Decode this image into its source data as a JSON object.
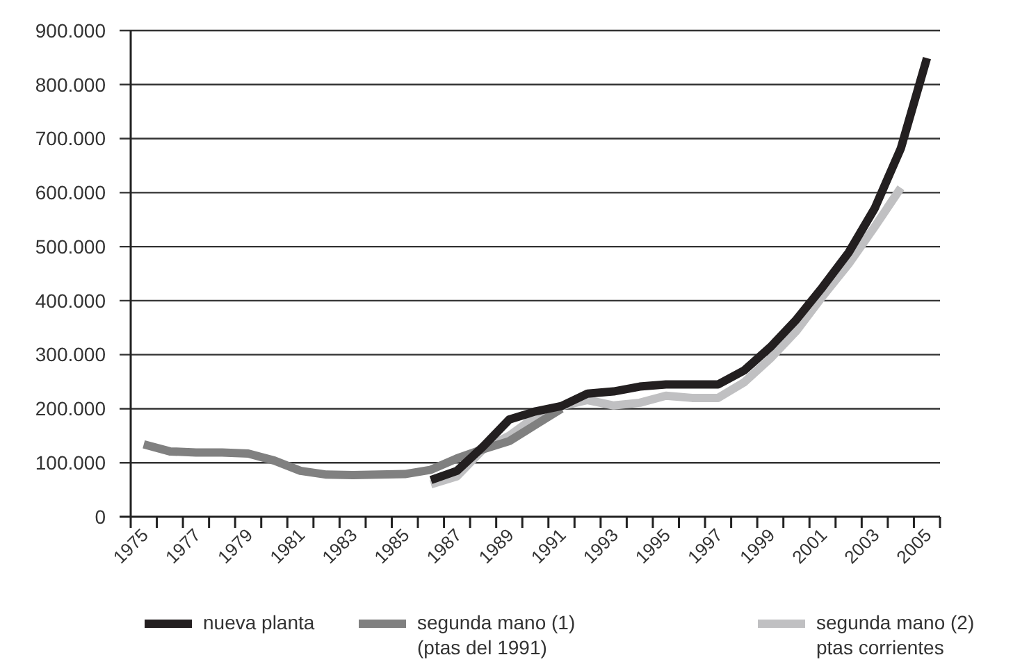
{
  "chart_data": {
    "type": "line",
    "categories": [
      "1975",
      null,
      "1977",
      null,
      "1979",
      null,
      "1981",
      null,
      "1983",
      null,
      "1985",
      null,
      "1987",
      null,
      "1989",
      null,
      "1991",
      null,
      "1993",
      null,
      "1995",
      null,
      "1997",
      null,
      "1999",
      null,
      "2001",
      null,
      "2003",
      null,
      "2005"
    ],
    "series": [
      {
        "name": "nueva planta",
        "color": "#231f20",
        "values": [
          null,
          null,
          null,
          null,
          null,
          null,
          null,
          null,
          null,
          null,
          null,
          68000,
          85000,
          130000,
          180000,
          195000,
          205000,
          228000,
          232000,
          241000,
          245000,
          245000,
          245000,
          271000,
          314000,
          365000,
          425000,
          489000,
          571000,
          682000,
          849000
        ]
      },
      {
        "name": "segunda mano (1) (ptas del 1991)",
        "color": "#808080",
        "values": [
          134000,
          121000,
          119000,
          119000,
          117000,
          104000,
          85000,
          78000,
          77000,
          78000,
          79000,
          87000,
          108000,
          125000,
          140000,
          170000,
          200000,
          null,
          null,
          null,
          null,
          null,
          null,
          null,
          null,
          null,
          null,
          null,
          null,
          null,
          null
        ]
      },
      {
        "name": "segunda mano (2) ptas corrientes",
        "color": "#c0c0c2",
        "values": [
          null,
          null,
          null,
          null,
          null,
          null,
          null,
          null,
          null,
          null,
          null,
          60000,
          75000,
          125000,
          150000,
          185000,
          205000,
          216000,
          206000,
          211000,
          224000,
          220000,
          220000,
          249000,
          293000,
          344000,
          408000,
          468000,
          537000,
          609000,
          null
        ]
      }
    ],
    "ylim": [
      0,
      900000
    ],
    "yticks": [
      {
        "value": 0,
        "label": "0"
      },
      {
        "value": 100000,
        "label": "100.000"
      },
      {
        "value": 200000,
        "label": "200.000"
      },
      {
        "value": 300000,
        "label": "300.000"
      },
      {
        "value": 400000,
        "label": "400.000"
      },
      {
        "value": 500000,
        "label": "500.000"
      },
      {
        "value": 600000,
        "label": "600.000"
      },
      {
        "value": 700000,
        "label": "700.000"
      },
      {
        "value": 800000,
        "label": "800.000"
      },
      {
        "value": 900000,
        "label": "900.000"
      }
    ],
    "grid": "y",
    "legend": "bottom",
    "line_style": "solid"
  }
}
